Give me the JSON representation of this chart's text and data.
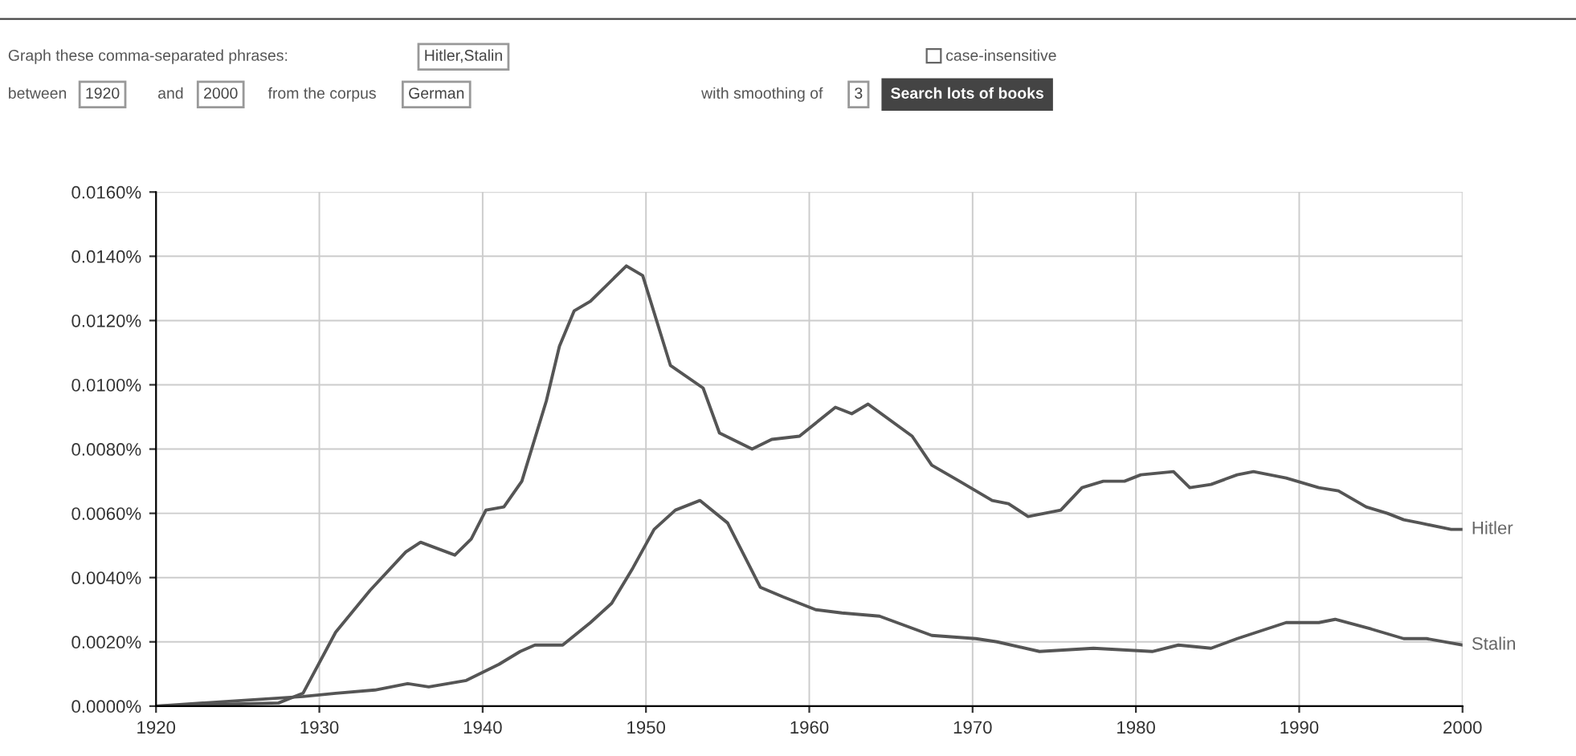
{
  "chart_data": {
    "type": "line",
    "annotations": [
      "Graph these comma-separated phrases:",
      "Hitler,Stalin",
      "case-insensitive",
      "between",
      "1920",
      "and",
      "2000",
      "from the corpus",
      "German",
      "with smoothing of",
      "3",
      "Search lots of books"
    ],
    "series": [
      {
        "name": "Hitler",
        "color": "#555555",
        "x": [
          1920,
          1927.5,
          1929,
          1931,
          1933.1,
          1935.3,
          1936.2,
          1938.3,
          1939.3,
          1940.2,
          1941.3,
          1942.4,
          1943.9,
          1944.7,
          1945.6,
          1946.6,
          1948.8,
          1949.8,
          1951.5,
          1953.5,
          1954.5,
          1956.5,
          1957.7,
          1959.4,
          1961.6,
          1962.6,
          1963.6,
          1966.3,
          1967.5,
          1969.2,
          1971.2,
          1972.2,
          1973.4,
          1975.4,
          1976.7,
          1978,
          1979.3,
          1980.3,
          1982.3,
          1983.3,
          1984.6,
          1986.2,
          1987.2,
          1989.2,
          1991.2,
          1992.4,
          1994.1,
          1995.4,
          1996.4,
          1997.4,
          1999.3,
          2000
        ],
        "values": [
          0,
          0.0001,
          0.0004,
          0.0023,
          0.0036,
          0.0048,
          0.0051,
          0.0047,
          0.0052,
          0.0061,
          0.0062,
          0.007,
          0.0095,
          0.0112,
          0.0123,
          0.0126,
          0.0137,
          0.0134,
          0.0106,
          0.0099,
          0.0085,
          0.008,
          0.0083,
          0.0084,
          0.0093,
          0.0091,
          0.0094,
          0.0084,
          0.0075,
          0.007,
          0.0064,
          0.0063,
          0.0059,
          0.0061,
          0.0068,
          0.007,
          0.007,
          0.0072,
          0.0073,
          0.0068,
          0.0069,
          0.0072,
          0.0073,
          0.0071,
          0.0068,
          0.0067,
          0.0062,
          0.006,
          0.0058,
          0.0057,
          0.0055,
          0.0055
        ]
      },
      {
        "name": "Stalin",
        "color": "#555555",
        "x": [
          1920,
          1929,
          1931,
          1933.4,
          1935.4,
          1936.7,
          1939,
          1941,
          1942.3,
          1943.2,
          1944.9,
          1946.6,
          1947.9,
          1949.2,
          1950.5,
          1951.8,
          1953.3,
          1955,
          1957,
          1958.4,
          1960.4,
          1962,
          1964.3,
          1967.5,
          1970.2,
          1971.5,
          1974.1,
          1977.4,
          1981,
          1982.6,
          1984.6,
          1986.2,
          1989.2,
          1991.2,
          1992.2,
          1994.4,
          1996.4,
          1997.8,
          2000
        ],
        "values": [
          0,
          0.0003,
          0.0004,
          0.0005,
          0.0007,
          0.0006,
          0.0008,
          0.0013,
          0.0017,
          0.0019,
          0.0019,
          0.0026,
          0.0032,
          0.0043,
          0.0055,
          0.0061,
          0.0064,
          0.0057,
          0.0037,
          0.0034,
          0.003,
          0.0029,
          0.0028,
          0.0022,
          0.0021,
          0.002,
          0.0017,
          0.0018,
          0.0017,
          0.0019,
          0.0018,
          0.0021,
          0.0026,
          0.0026,
          0.0027,
          0.0024,
          0.0021,
          0.0021,
          0.0019
        ]
      }
    ],
    "xlim": [
      1920,
      2000
    ],
    "xticks": [
      1920,
      1930,
      1940,
      1950,
      1960,
      1970,
      1980,
      1990,
      2000
    ],
    "ylim": [
      0,
      0.016
    ],
    "yticks": [
      {
        "value": 0,
        "label": "0.0000%"
      },
      {
        "value": 0.002,
        "label": "0.0020%"
      },
      {
        "value": 0.004,
        "label": "0.0040%"
      },
      {
        "value": 0.006,
        "label": "0.0060%"
      },
      {
        "value": 0.008,
        "label": "0.0080%"
      },
      {
        "value": 0.01,
        "label": "0.0100%"
      },
      {
        "value": 0.012,
        "label": "0.0120%"
      },
      {
        "value": 0.014,
        "label": "0.0140%"
      },
      {
        "value": 0.016,
        "label": "0.0160%"
      }
    ],
    "grid": true,
    "marker": "none",
    "line_style": "solid"
  }
}
